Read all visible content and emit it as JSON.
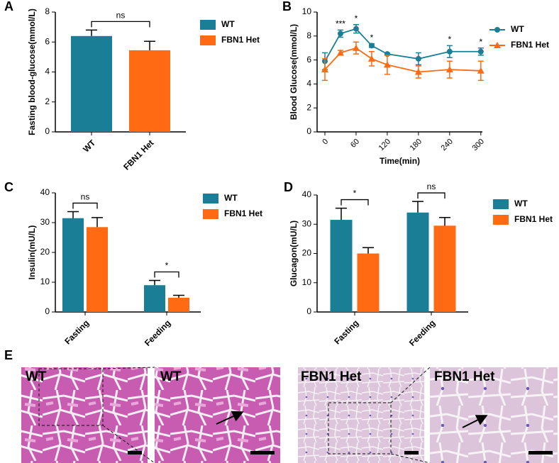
{
  "chart_data": [
    {
      "type": "bar",
      "panel": "A",
      "ylabel": "Fasting blood-glucose(mmol/L)",
      "categories": [
        "WT",
        "FBN1 Het"
      ],
      "series": [
        {
          "name": "WT",
          "color": "#1a7f96",
          "values": [
            6.4,
            null
          ],
          "errors": [
            0.4,
            null
          ]
        },
        {
          "name": "FBN1 Het",
          "color": "#ff6a13",
          "values": [
            null,
            5.45
          ],
          "errors": [
            null,
            0.6
          ]
        }
      ],
      "annotations": [
        "ns"
      ],
      "ylim": [
        0,
        8
      ],
      "yticks": [
        0,
        2,
        4,
        6,
        8
      ]
    },
    {
      "type": "line",
      "panel": "B",
      "ylabel": "Blood Glucose(mmol/L)",
      "xlabel": "Time(min)",
      "x": [
        0,
        30,
        60,
        90,
        120,
        180,
        240,
        300
      ],
      "series": [
        {
          "name": "WT",
          "color": "#1a7f96",
          "marker": "circle",
          "values": [
            5.9,
            8.2,
            8.6,
            7.2,
            6.5,
            6.1,
            6.7,
            6.7
          ],
          "errors": [
            0.7,
            0.3,
            0.35,
            0.15,
            0.1,
            0.5,
            0.5,
            0.3
          ]
        },
        {
          "name": "FBN1 Het",
          "color": "#ff6a13",
          "marker": "triangle",
          "values": [
            5.2,
            6.6,
            7.0,
            6.1,
            5.6,
            5.0,
            5.2,
            5.1
          ],
          "errors": [
            0.9,
            0.2,
            0.5,
            0.6,
            0.8,
            0.5,
            0.7,
            0.8
          ]
        }
      ],
      "annotations": [
        null,
        "***",
        "*",
        "*",
        null,
        null,
        "*",
        "*"
      ],
      "xlim": [
        -15,
        303
      ],
      "xticks": [
        0,
        60,
        120,
        180,
        240,
        300
      ],
      "ylim": [
        0,
        10
      ],
      "yticks": [
        0,
        2,
        4,
        6,
        8,
        10
      ]
    },
    {
      "type": "bar",
      "panel": "C",
      "ylabel": "Insulin(mU/L)",
      "categories": [
        "Fasting",
        "Feeding"
      ],
      "series": [
        {
          "name": "WT",
          "color": "#1a7f96",
          "values": [
            31.5,
            9
          ],
          "errors": [
            2.2,
            1.6
          ]
        },
        {
          "name": "FBN1 Het",
          "color": "#ff6a13",
          "values": [
            28.5,
            4.8
          ],
          "errors": [
            3.2,
            0.8
          ]
        }
      ],
      "annotations": [
        "ns",
        "*"
      ],
      "ylim": [
        0,
        40
      ],
      "yticks": [
        0,
        10,
        20,
        30,
        40
      ]
    },
    {
      "type": "bar",
      "panel": "D",
      "ylabel": "Glucagon(mU/L)",
      "categories": [
        "Fasting",
        "Feeding"
      ],
      "series": [
        {
          "name": "WT",
          "color": "#1a7f96",
          "values": [
            31.5,
            34
          ],
          "errors": [
            4,
            3.8
          ]
        },
        {
          "name": "FBN1 Het",
          "color": "#ff6a13",
          "values": [
            20,
            29.5
          ],
          "errors": [
            2,
            2.8
          ]
        }
      ],
      "annotations": [
        "*",
        "ns"
      ],
      "ylim": [
        0,
        40
      ],
      "yticks": [
        0,
        10,
        20,
        30,
        40
      ]
    }
  ],
  "panel_e": {
    "label": "E",
    "images": [
      "WT",
      "WT",
      "FBN1 Het",
      "FBN1 Het"
    ]
  }
}
